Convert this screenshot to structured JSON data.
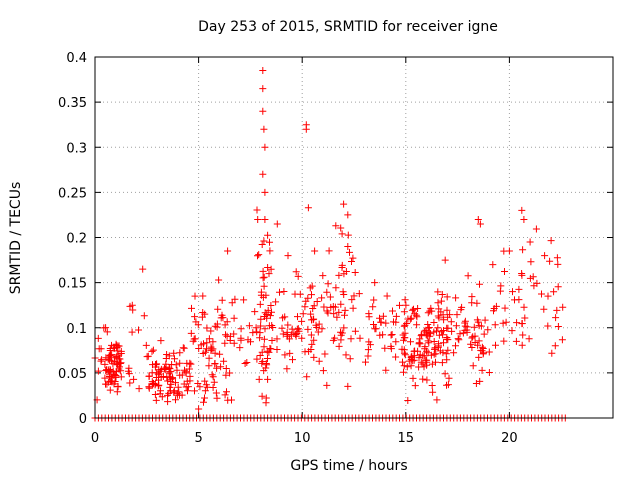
{
  "chart_data": {
    "type": "scatter",
    "title": "Day 253 of 2015, SRMTID for receiver igne",
    "xlabel": "GPS time / hours",
    "ylabel": "SRMTID / TECUs",
    "xlim": [
      0,
      25
    ],
    "ylim": [
      0,
      0.4
    ],
    "grid": true,
    "marker": "+",
    "marker_color": "#ff0000",
    "x_ticks": [
      0,
      5,
      10,
      15,
      20
    ],
    "x_tick_labels": [
      "0",
      "5",
      "10",
      "15",
      "20"
    ],
    "y_ticks": [
      0,
      0.05,
      0.1,
      0.15,
      0.2,
      0.25,
      0.3,
      0.35,
      0.4
    ],
    "y_tick_labels": [
      "0",
      "0.05",
      "0.1",
      "0.15",
      "0.2",
      "0.25",
      "0.3",
      "0.35",
      "0.4"
    ],
    "clusters": [
      {
        "x_range": [
          0.0,
          0.6
        ],
        "y_mean": 0.065,
        "y_spread": 0.015,
        "count": 14
      },
      {
        "x_range": [
          0.5,
          1.3
        ],
        "y_mean": 0.06,
        "y_spread": 0.015,
        "count": 70
      },
      {
        "x_range": [
          1.6,
          2.6
        ],
        "y_mean": 0.085,
        "y_spread": 0.03,
        "count": 14
      },
      {
        "x_range": [
          2.6,
          4.6
        ],
        "y_mean": 0.048,
        "y_spread": 0.014,
        "count": 95
      },
      {
        "x_range": [
          4.6,
          6.6
        ],
        "y_mean": 0.08,
        "y_spread": 0.03,
        "count": 75
      },
      {
        "x_range": [
          6.6,
          7.8
        ],
        "y_mean": 0.1,
        "y_spread": 0.02,
        "count": 18
      },
      {
        "x_range": [
          7.8,
          8.5
        ],
        "y_mean": 0.12,
        "y_spread": 0.055,
        "count": 55
      },
      {
        "x_range": [
          8.5,
          9.6
        ],
        "y_mean": 0.1,
        "y_spread": 0.03,
        "count": 25
      },
      {
        "x_range": [
          9.6,
          11.0
        ],
        "y_mean": 0.11,
        "y_spread": 0.03,
        "count": 45
      },
      {
        "x_range": [
          11.0,
          12.6
        ],
        "y_mean": 0.13,
        "y_spread": 0.04,
        "count": 50
      },
      {
        "x_range": [
          12.6,
          14.8
        ],
        "y_mean": 0.1,
        "y_spread": 0.025,
        "count": 35
      },
      {
        "x_range": [
          14.8,
          17.0
        ],
        "y_mean": 0.085,
        "y_spread": 0.025,
        "count": 130
      },
      {
        "x_range": [
          17.0,
          19.0
        ],
        "y_mean": 0.09,
        "y_spread": 0.025,
        "count": 60
      },
      {
        "x_range": [
          19.0,
          22.6
        ],
        "y_mean": 0.13,
        "y_spread": 0.035,
        "count": 55
      }
    ],
    "outliers": [
      {
        "x": 0.1,
        "y": 0.02
      },
      {
        "x": 3.5,
        "y": 0.025
      },
      {
        "x": 4.8,
        "y": 0.03
      },
      {
        "x": 5.0,
        "y": 0.01
      },
      {
        "x": 8.1,
        "y": 0.385
      },
      {
        "x": 8.1,
        "y": 0.365
      },
      {
        "x": 8.1,
        "y": 0.34
      },
      {
        "x": 8.15,
        "y": 0.32
      },
      {
        "x": 8.2,
        "y": 0.3
      },
      {
        "x": 8.1,
        "y": 0.27
      },
      {
        "x": 8.2,
        "y": 0.25
      },
      {
        "x": 8.2,
        "y": 0.22
      },
      {
        "x": 8.4,
        "y": 0.16
      },
      {
        "x": 8.8,
        "y": 0.215
      },
      {
        "x": 10.2,
        "y": 0.325
      },
      {
        "x": 10.2,
        "y": 0.32
      },
      {
        "x": 10.3,
        "y": 0.233
      },
      {
        "x": 10.6,
        "y": 0.185
      },
      {
        "x": 12.0,
        "y": 0.237
      },
      {
        "x": 12.2,
        "y": 0.225
      },
      {
        "x": 12.2,
        "y": 0.19
      },
      {
        "x": 18.5,
        "y": 0.22
      },
      {
        "x": 18.6,
        "y": 0.215
      },
      {
        "x": 20.0,
        "y": 0.185
      },
      {
        "x": 20.6,
        "y": 0.23
      },
      {
        "x": 20.7,
        "y": 0.22
      },
      {
        "x": 21.0,
        "y": 0.195
      },
      {
        "x": 21.7,
        "y": 0.18
      },
      {
        "x": 16.9,
        "y": 0.175
      },
      {
        "x": 6.4,
        "y": 0.185
      },
      {
        "x": 2.3,
        "y": 0.165
      },
      {
        "x": 1.8,
        "y": 0.125
      },
      {
        "x": 12.2,
        "y": 0.035
      },
      {
        "x": 16.5,
        "y": 0.02
      },
      {
        "x": 19.2,
        "y": 0.17
      },
      {
        "x": 13.5,
        "y": 0.15
      }
    ],
    "zero_line": {
      "x_range": [
        0.0,
        22.7
      ],
      "y": 0,
      "count": 140
    }
  }
}
